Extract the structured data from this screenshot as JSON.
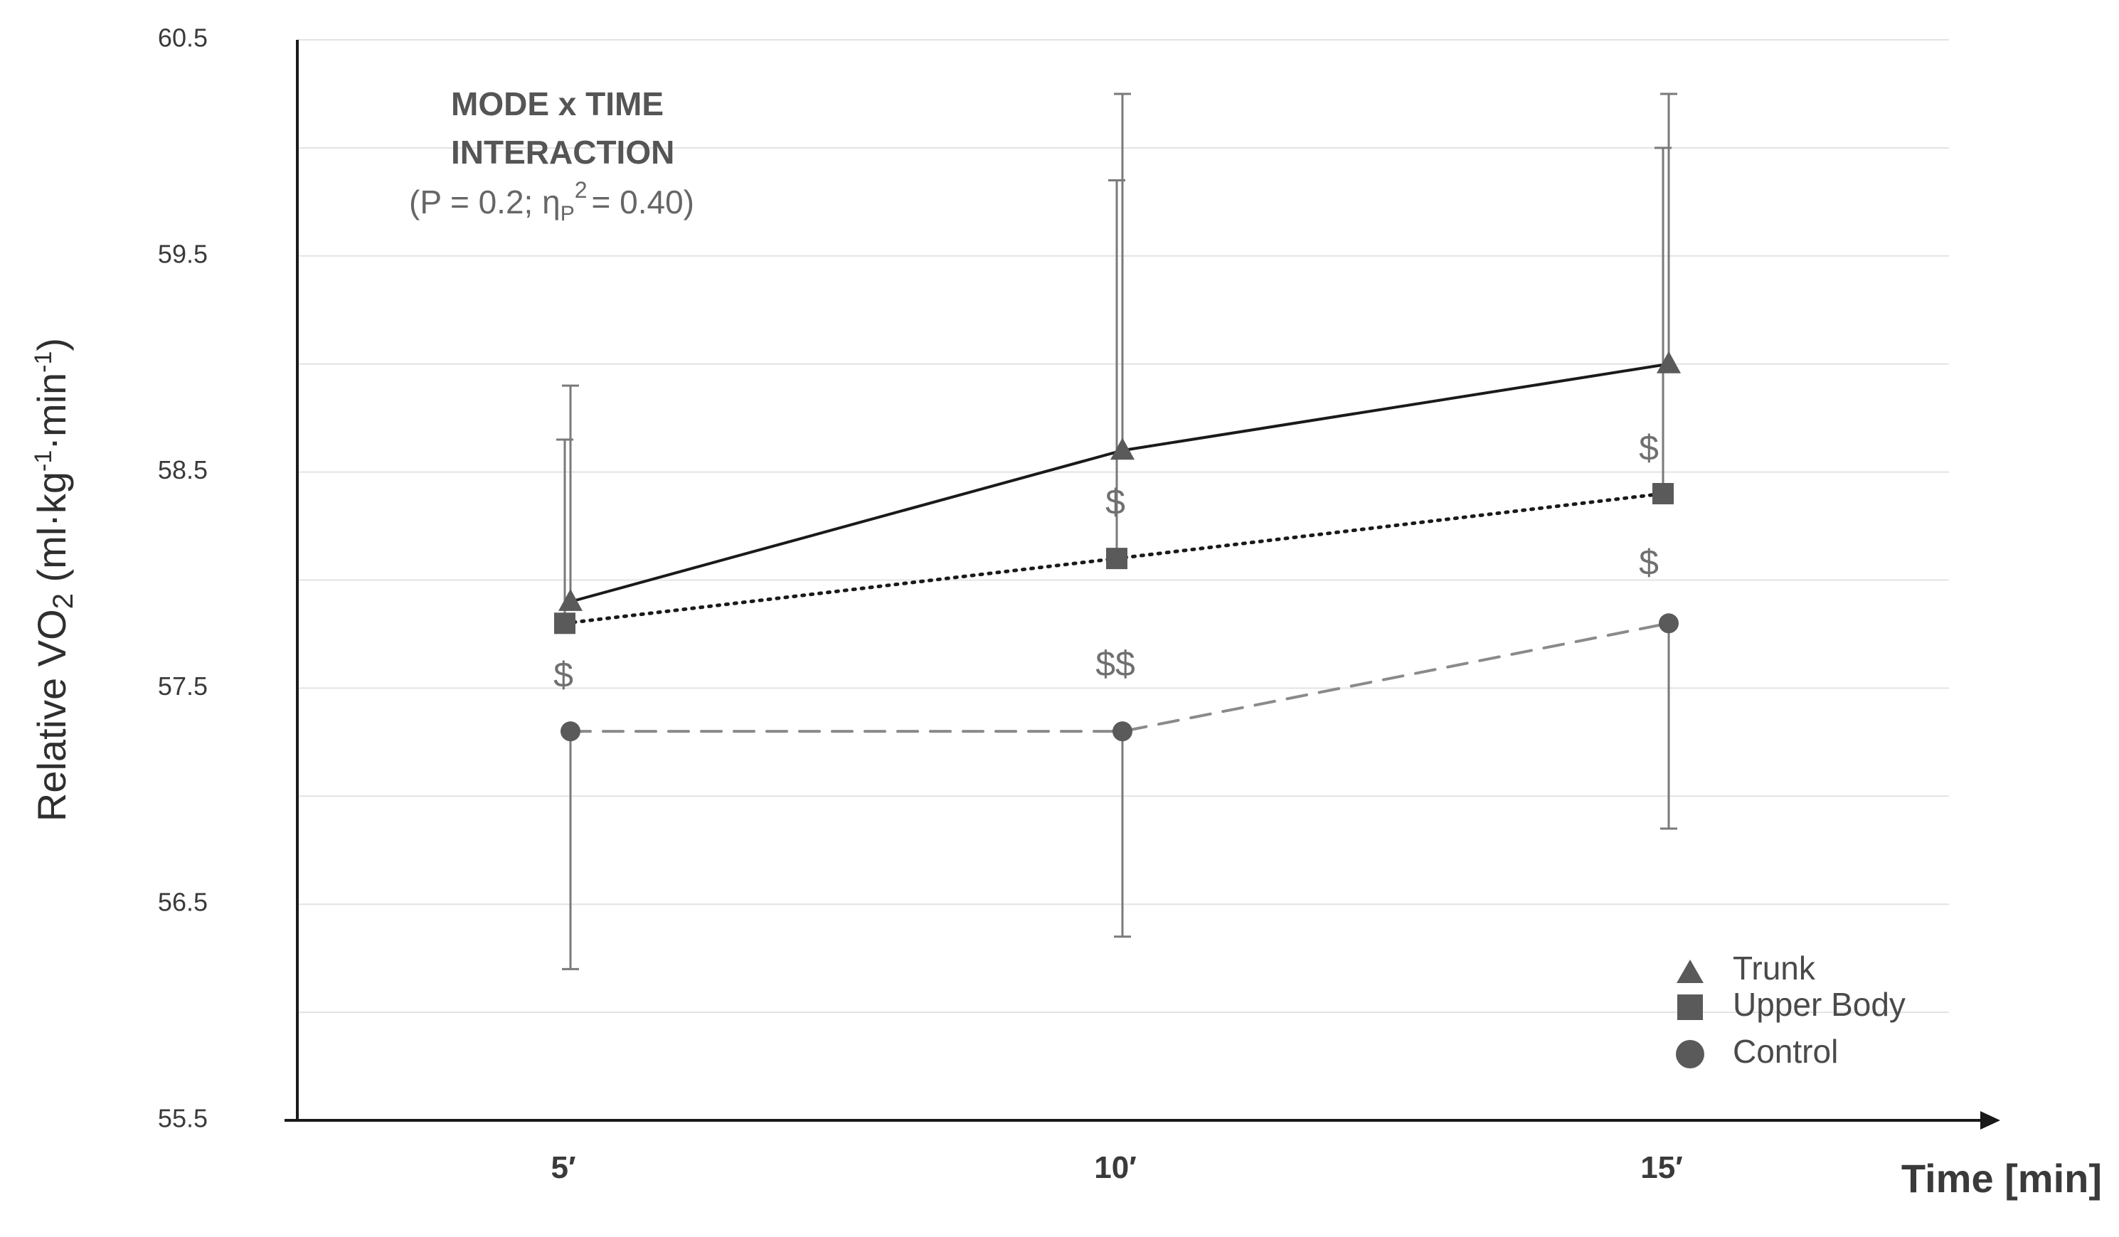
{
  "chart_data": {
    "type": "line",
    "x": [
      "5′",
      "10′",
      "15′"
    ],
    "xlabel": "Time [min]",
    "ylabel_main": "Relative VO",
    "ylabel_sub": "2",
    "ylabel_unit_open": " (ml·kg",
    "ylabel_sup1": "-1",
    "ylabel_unit_mid": "·min",
    "ylabel_sup2": "-1",
    "ylabel_unit_close": ")",
    "ylim": [
      55.5,
      60.5
    ],
    "yticks": [
      "55.5",
      "56.5",
      "57.5",
      "58.5",
      "59.5",
      "60.5"
    ],
    "grid": "horizontal",
    "legend_position": "bottom-right",
    "annotation": {
      "line1": "MODE x TIME",
      "line2": "INTERACTION",
      "stat_open": "(P = 0.2; η",
      "stat_sub": "P",
      "stat_sup": "2",
      "stat_close": "= 0.40)"
    },
    "series": [
      {
        "name": "Trunk",
        "marker": "triangle",
        "line_style": "solid",
        "color": "#1a1a1a",
        "marker_color": "#5a5a5a",
        "values": [
          57.9,
          58.6,
          59.0
        ],
        "err_upper": [
          58.9,
          60.25,
          60.25
        ]
      },
      {
        "name": "Upper Body",
        "marker": "square",
        "line_style": "dotted",
        "color": "#1a1a1a",
        "marker_color": "#5a5a5a",
        "values": [
          57.8,
          58.1,
          58.4
        ],
        "err_upper": [
          58.65,
          59.85,
          60.0
        ]
      },
      {
        "name": "Control",
        "marker": "circle",
        "line_style": "dashed",
        "color": "#8a8a8a",
        "marker_color": "#5a5a5a",
        "values": [
          57.3,
          57.3,
          57.8
        ],
        "err_lower": [
          56.2,
          56.35,
          56.85
        ]
      }
    ],
    "significance_marks": [
      {
        "x_index": 0,
        "y": 57.55,
        "text": "$"
      },
      {
        "x_index": 1,
        "y": 58.35,
        "text": "$"
      },
      {
        "x_index": 1,
        "y": 57.6,
        "text": "$$"
      },
      {
        "x_index": 2,
        "y": 58.6,
        "text": "$"
      },
      {
        "x_index": 2,
        "y": 58.07,
        "text": "$"
      }
    ]
  }
}
